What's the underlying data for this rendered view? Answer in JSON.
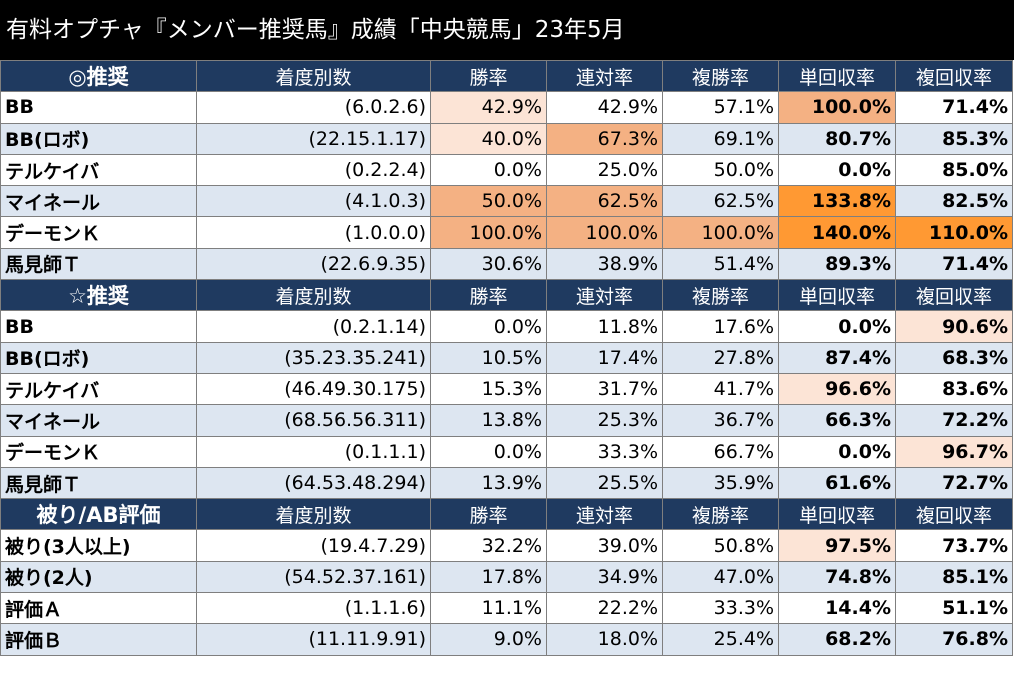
{
  "title": "有料オプチャ『メンバー推奨馬』成績「中央競馬」23年5月",
  "headers": [
    "着度別数",
    "勝率",
    "連対率",
    "複勝率",
    "単回収率",
    "複回収率"
  ],
  "colors": {
    "header_bg": "#1f3a60",
    "stripe": "#dde6f1",
    "light": "#fce4d6",
    "mid": "#f4b183",
    "strong": "#ff9933"
  },
  "sections": [
    {
      "label": "◎推奨",
      "rows": [
        {
          "name": "BB",
          "record": "(6.0.2.6)",
          "v": [
            "42.9%",
            "42.9%",
            "57.1%",
            "100.0%",
            "71.4%"
          ],
          "h": [
            "light",
            "",
            "",
            "mid",
            ""
          ]
        },
        {
          "name": "BB(ロボ)",
          "record": "(22.15.1.17)",
          "v": [
            "40.0%",
            "67.3%",
            "69.1%",
            "80.7%",
            "85.3%"
          ],
          "h": [
            "light",
            "mid",
            "",
            "",
            ""
          ]
        },
        {
          "name": "テルケイバ",
          "record": "(0.2.2.4)",
          "v": [
            "0.0%",
            "25.0%",
            "50.0%",
            "0.0%",
            "85.0%"
          ],
          "h": [
            "",
            "",
            "",
            "",
            ""
          ]
        },
        {
          "name": "マイネール",
          "record": "(4.1.0.3)",
          "v": [
            "50.0%",
            "62.5%",
            "62.5%",
            "133.8%",
            "82.5%"
          ],
          "h": [
            "mid",
            "mid",
            "",
            "strong",
            ""
          ]
        },
        {
          "name": "デーモンＫ",
          "record": "(1.0.0.0)",
          "v": [
            "100.0%",
            "100.0%",
            "100.0%",
            "140.0%",
            "110.0%"
          ],
          "h": [
            "mid",
            "mid",
            "mid",
            "strong",
            "strong"
          ]
        },
        {
          "name": "馬見師Ｔ",
          "record": "(22.6.9.35)",
          "v": [
            "30.6%",
            "38.9%",
            "51.4%",
            "89.3%",
            "71.4%"
          ],
          "h": [
            "",
            "",
            "",
            "",
            ""
          ]
        }
      ]
    },
    {
      "label": "☆推奨",
      "rows": [
        {
          "name": "BB",
          "record": "(0.2.1.14)",
          "v": [
            "0.0%",
            "11.8%",
            "17.6%",
            "0.0%",
            "90.6%"
          ],
          "h": [
            "",
            "",
            "",
            "",
            "light"
          ]
        },
        {
          "name": "BB(ロボ)",
          "record": "(35.23.35.241)",
          "v": [
            "10.5%",
            "17.4%",
            "27.8%",
            "87.4%",
            "68.3%"
          ],
          "h": [
            "",
            "",
            "",
            "",
            ""
          ]
        },
        {
          "name": "テルケイバ",
          "record": "(46.49.30.175)",
          "v": [
            "15.3%",
            "31.7%",
            "41.7%",
            "96.6%",
            "83.6%"
          ],
          "h": [
            "",
            "",
            "",
            "light",
            ""
          ]
        },
        {
          "name": "マイネール",
          "record": "(68.56.56.311)",
          "v": [
            "13.8%",
            "25.3%",
            "36.7%",
            "66.3%",
            "72.2%"
          ],
          "h": [
            "",
            "",
            "",
            "",
            ""
          ]
        },
        {
          "name": "デーモンＫ",
          "record": "(0.1.1.1)",
          "v": [
            "0.0%",
            "33.3%",
            "66.7%",
            "0.0%",
            "96.7%"
          ],
          "h": [
            "",
            "",
            "",
            "",
            "light"
          ]
        },
        {
          "name": "馬見師Ｔ",
          "record": "(64.53.48.294)",
          "v": [
            "13.9%",
            "25.5%",
            "35.9%",
            "61.6%",
            "72.7%"
          ],
          "h": [
            "",
            "",
            "",
            "",
            ""
          ]
        }
      ]
    },
    {
      "label": "被り/AB評価",
      "rows": [
        {
          "name": "被り(3人以上)",
          "record": "(19.4.7.29)",
          "v": [
            "32.2%",
            "39.0%",
            "50.8%",
            "97.5%",
            "73.7%"
          ],
          "h": [
            "",
            "",
            "",
            "light",
            ""
          ]
        },
        {
          "name": "被り(2人)",
          "record": "(54.52.37.161)",
          "v": [
            "17.8%",
            "34.9%",
            "47.0%",
            "74.8%",
            "85.1%"
          ],
          "h": [
            "",
            "",
            "",
            "",
            ""
          ]
        },
        {
          "name": "評価Ａ",
          "record": "(1.1.1.6)",
          "v": [
            "11.1%",
            "22.2%",
            "33.3%",
            "14.4%",
            "51.1%"
          ],
          "h": [
            "",
            "",
            "",
            "",
            ""
          ]
        },
        {
          "name": "評価Ｂ",
          "record": "(11.11.9.91)",
          "v": [
            "9.0%",
            "18.0%",
            "25.4%",
            "68.2%",
            "76.8%"
          ],
          "h": [
            "",
            "",
            "",
            "",
            ""
          ]
        }
      ]
    }
  ]
}
